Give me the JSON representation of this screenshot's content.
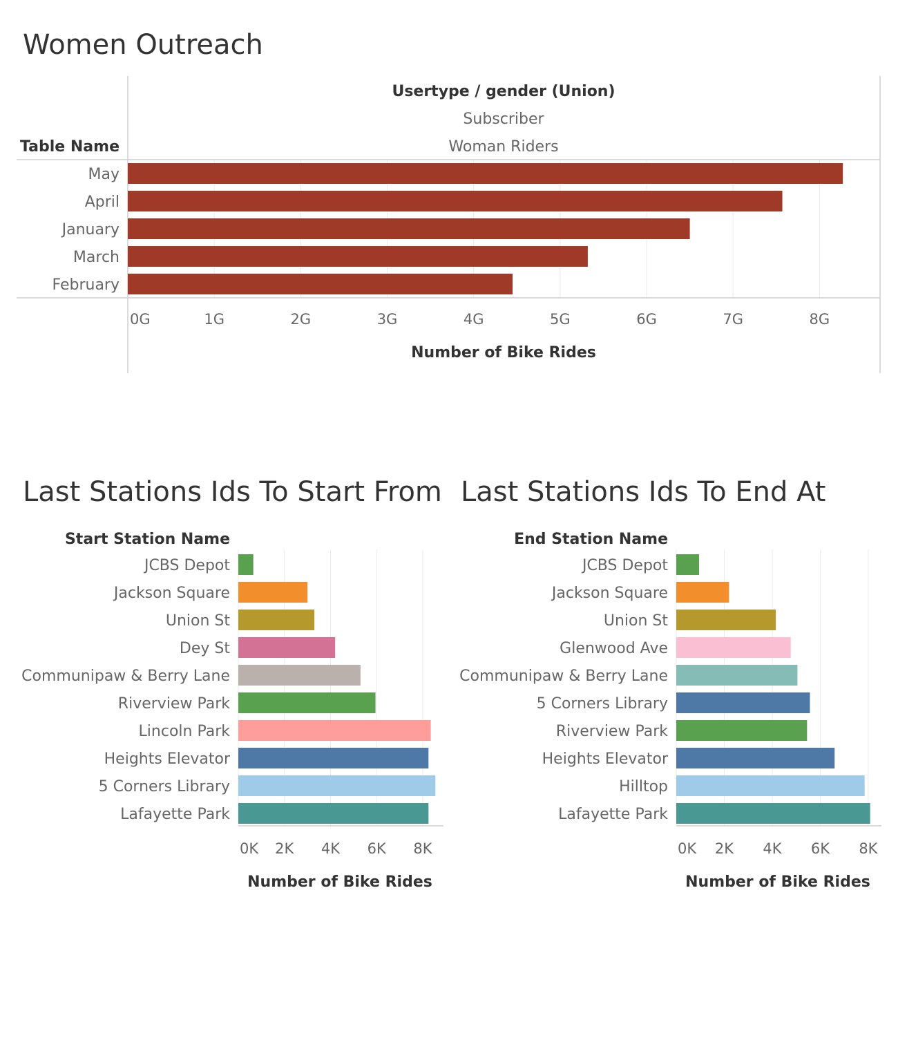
{
  "women_outreach": {
    "title": "Women Outreach",
    "chart_data": {
      "type": "bar",
      "orientation": "horizontal",
      "header": {
        "columns_label": "Usertype  /  gender (Union)",
        "usertype": "Subscriber",
        "gender": "Woman Riders",
        "row_label": "Table Name"
      },
      "categories": [
        "May",
        "April",
        "January",
        "March",
        "February"
      ],
      "values": [
        8.27,
        7.57,
        6.5,
        5.32,
        4.45
      ],
      "x_unit": "G",
      "xlim": [
        0,
        8.7
      ],
      "x_ticks": [
        "0G",
        "1G",
        "2G",
        "3G",
        "4G",
        "5G",
        "6G",
        "7G",
        "8G"
      ],
      "xlabel": "Number of Bike Rides",
      "color": "#a03a28",
      "grid": true
    }
  },
  "start_stations": {
    "title": "Last Stations Ids To Start From",
    "chart_data": {
      "type": "bar",
      "orientation": "horizontal",
      "row_label": "Start Station Name",
      "categories": [
        "JCBS Depot",
        "Jackson Square",
        "Union St",
        "Dey St",
        "Communipaw & Berry Lane",
        "Riverview Park",
        "Lincoln Park",
        "Heights Elevator",
        "5 Corners Library",
        "Lafayette Park"
      ],
      "values": [
        650,
        3000,
        3300,
        4200,
        5300,
        5950,
        8350,
        8250,
        8550,
        8250
      ],
      "colors": [
        "#59a14f",
        "#f28e2b",
        "#b6992d",
        "#d37295",
        "#bab0ac",
        "#59a14f",
        "#ff9d9a",
        "#4e79a7",
        "#a0cbe8",
        "#499894"
      ],
      "xlim": [
        0,
        8900
      ],
      "x_ticks": [
        "0K",
        "2K",
        "4K",
        "6K",
        "8K"
      ],
      "xlabel": "Number of Bike Rides",
      "grid": true
    }
  },
  "end_stations": {
    "title": "Last Stations Ids To End At",
    "chart_data": {
      "type": "bar",
      "orientation": "horizontal",
      "row_label": "End Station Name",
      "categories": [
        "JCBS Depot",
        "Jackson Square",
        "Union St",
        "Glenwood Ave",
        "Communipaw & Berry Lane",
        "5 Corners Library",
        "Riverview Park",
        "Heights Elevator",
        "Hilltop",
        "Lafayette Park"
      ],
      "values": [
        950,
        2200,
        4150,
        4770,
        5050,
        5570,
        5450,
        6600,
        7850,
        8080
      ],
      "colors": [
        "#59a14f",
        "#f28e2b",
        "#b6992d",
        "#fabfd2",
        "#86bcb6",
        "#4e79a7",
        "#59a14f",
        "#4e79a7",
        "#a0cbe8",
        "#499894"
      ],
      "xlim": [
        0,
        8550
      ],
      "x_ticks": [
        "0K",
        "2K",
        "4K",
        "6K",
        "8K"
      ],
      "xlabel": "Number of Bike Rides",
      "grid": true
    }
  }
}
